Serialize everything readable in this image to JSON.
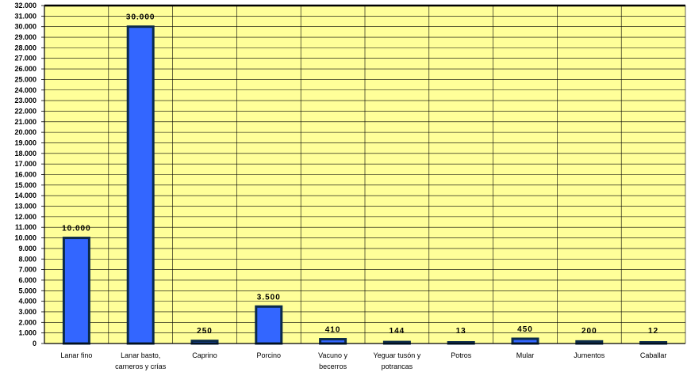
{
  "chart_data": {
    "type": "bar",
    "title": "",
    "xlabel": "",
    "ylabel": "",
    "categories": [
      [
        "Lanar fino"
      ],
      [
        "Lanar basto,",
        "carneros y crías"
      ],
      [
        "Caprino"
      ],
      [
        "Porcino"
      ],
      [
        "Vacuno y",
        "becerros"
      ],
      [
        "Yeguar tusón y",
        "potrancas"
      ],
      [
        "Potros"
      ],
      [
        "Mular"
      ],
      [
        "Jumentos"
      ],
      [
        "Caballar"
      ]
    ],
    "values": [
      10000,
      30000,
      250,
      3500,
      410,
      144,
      13,
      450,
      200,
      12
    ],
    "value_labels": [
      "10.000",
      "30.000",
      "250",
      "3.500",
      "410",
      "144",
      "13",
      "450",
      "200",
      "12"
    ],
    "ylim": [
      0,
      32000
    ],
    "ytick_step": 1000,
    "ytick_labels": [
      "0",
      "1.000",
      "2.000",
      "3.000",
      "4.000",
      "5.000",
      "6.000",
      "7.000",
      "8.000",
      "9.000",
      "10.000",
      "11.000",
      "12.000",
      "13.000",
      "14.000",
      "15.000",
      "16.000",
      "17.000",
      "18.000",
      "19.000",
      "20.000",
      "21.000",
      "22.000",
      "23.000",
      "24.000",
      "25.000",
      "26.000",
      "27.000",
      "28.000",
      "29.000",
      "30.000",
      "31.000",
      "32.000"
    ],
    "grid": true,
    "legend": "none",
    "colors": {
      "plot_background": "#FFFF99",
      "bar_fill": "#3366FF",
      "bar_edge": "#0B2A4A",
      "grid": "#000000"
    }
  }
}
